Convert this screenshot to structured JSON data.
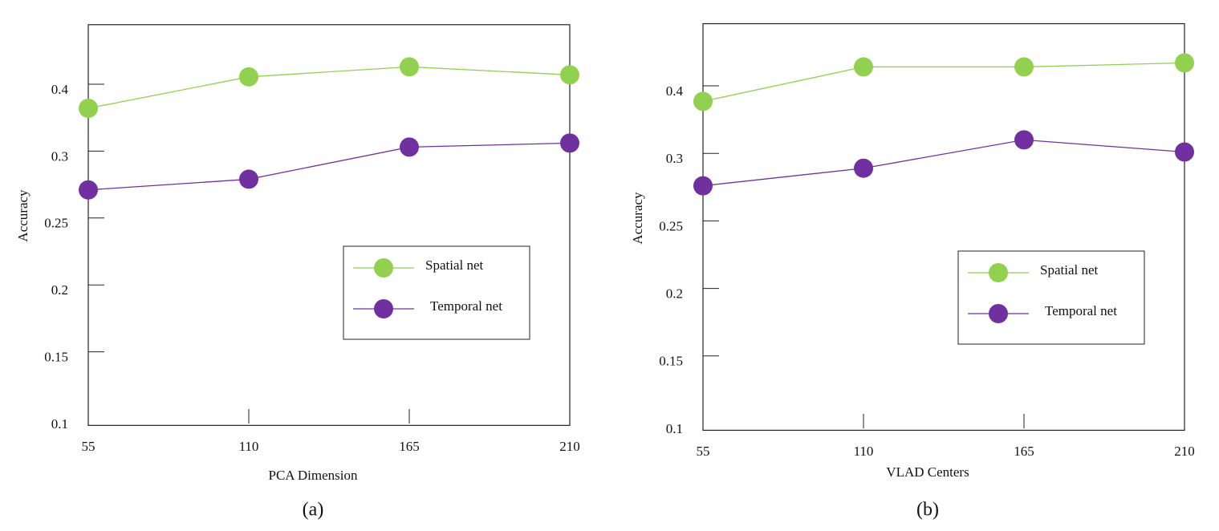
{
  "chart_data": [
    {
      "type": "line",
      "caption": "(a)",
      "xlabel": "PCA Dimension",
      "ylabel": "Accuracy",
      "x": [
        55,
        110,
        165,
        210
      ],
      "xlim": [
        55,
        210
      ],
      "xticks": [
        55,
        110,
        165,
        210
      ],
      "ylim": [
        0.095,
        0.489
      ],
      "yticks": [
        0.1,
        0.15,
        0.2,
        0.25,
        0.3,
        0.4
      ],
      "legend": "lower right",
      "series": [
        {
          "name": "Spatial net",
          "color": "#92d050",
          "values": [
            0.364,
            0.411,
            0.426,
            0.414
          ]
        },
        {
          "name": "Temporal net",
          "color": "#7030a0",
          "values": [
            0.271,
            0.279,
            0.306,
            0.312
          ]
        }
      ]
    },
    {
      "type": "line",
      "caption": "(b)",
      "xlabel": "VLAD Centers",
      "ylabel": "Accuracy",
      "x": [
        55,
        110,
        165,
        210
      ],
      "xlim": [
        55,
        210
      ],
      "xticks": [
        55,
        110,
        165,
        210
      ],
      "ylim": [
        0.095,
        0.492
      ],
      "yticks": [
        0.1,
        0.15,
        0.2,
        0.25,
        0.3,
        0.4
      ],
      "legend": "lower right",
      "series": [
        {
          "name": "Spatial net",
          "color": "#92d050",
          "values": [
            0.377,
            0.428,
            0.428,
            0.434
          ]
        },
        {
          "name": "Temporal net",
          "color": "#7030a0",
          "values": [
            0.276,
            0.289,
            0.32,
            0.302
          ]
        }
      ]
    }
  ]
}
